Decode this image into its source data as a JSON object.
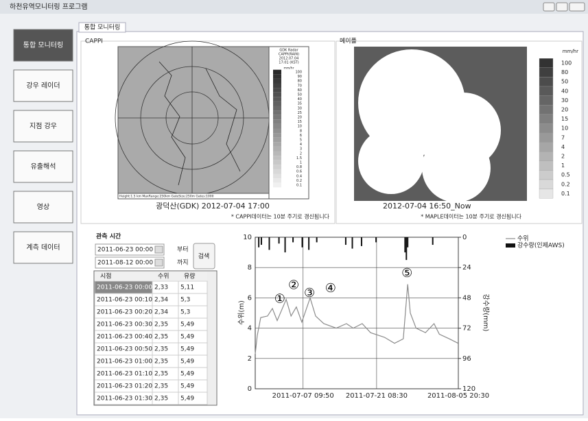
{
  "window": {
    "title": "하천유역모니터링 프로그램"
  },
  "sidebar": {
    "buttons": [
      "통합 모니터링",
      "강우 레이더",
      "지점 강우",
      "유출해석",
      "영상",
      "계측 데이터"
    ]
  },
  "tab": "통합 모니터링",
  "cappi": {
    "label": "CAPPI",
    "legend_header": [
      "GDK Radar",
      "CAPPI(RAIN)",
      "2012.07.04",
      "17:01 (KST)"
    ],
    "legend_unit": "mm/hr",
    "legend_values": [
      100,
      90,
      80,
      70,
      60,
      50,
      40,
      35,
      30,
      25,
      20,
      15,
      10,
      8,
      6,
      5,
      4,
      3,
      2,
      1.5,
      1,
      0.8,
      0.6,
      0.4,
      0.2,
      0.1
    ],
    "footer": "Height:1.5 km  MaxRange:250km  GateSize:250m  Gates:1000",
    "caption": "광덕산(GDK) 2012-07-04 17:00",
    "note": "* CAPPI데이터는 10분 주기로 갱신됩니다"
  },
  "maple": {
    "label": "메이플",
    "legend_unit": "mm/hr",
    "legend_values": [
      100,
      80,
      50,
      40,
      30,
      20,
      15,
      10,
      7,
      4,
      2,
      1,
      0.5,
      0.2,
      0.1
    ],
    "caption": "2012-07-04 16:50_Now",
    "note": "* MAPLE데이터는 10분 주기로 갱신됩니다"
  },
  "query": {
    "label": "관측 시간",
    "from": "2011-06-23 00:00",
    "from_suffix": "부터",
    "to": "2011-08-12 00:00",
    "to_suffix": "까지",
    "button": "검색"
  },
  "table": {
    "columns": [
      "시점",
      "수위",
      "유량"
    ],
    "rows": [
      [
        "2011-06-23 00:00",
        "2,33",
        "5,11"
      ],
      [
        "2011-06-23 00:10",
        "2,34",
        "5,3"
      ],
      [
        "2011-06-23 00:20",
        "2,34",
        "5,3"
      ],
      [
        "2011-06-23 00:30",
        "2,35",
        "5,49"
      ],
      [
        "2011-06-23 00:40",
        "2,35",
        "5,49"
      ],
      [
        "2011-06-23 00:50",
        "2,35",
        "5,49"
      ],
      [
        "2011-06-23 01:00",
        "2,35",
        "5,49"
      ],
      [
        "2011-06-23 01:10",
        "2,35",
        "5,49"
      ],
      [
        "2011-06-23 01:20",
        "2,35",
        "5,49"
      ],
      [
        "2011-06-23 01:30",
        "2,35",
        "5,49"
      ]
    ]
  },
  "chart_data": {
    "type": "line",
    "ylabel": "수위(m)",
    "y2label": "강수량(mm)",
    "xlim": [
      "2011-06-28 08:00",
      "2011-08-05 20:30"
    ],
    "xticks": [
      "2011-07-07 09:50",
      "2011-07-21 08:30",
      "2011-08-05 20:30"
    ],
    "ylim": [
      0,
      10
    ],
    "yticks": [
      0,
      2,
      4,
      6,
      8,
      10
    ],
    "y2lim": [
      120,
      0
    ],
    "y2ticks": [
      0,
      24,
      48,
      72,
      96,
      120
    ],
    "grid": true,
    "series": [
      {
        "name": "수위",
        "color": "#8a8a8a",
        "x": [
          "2011-06-28 08:00",
          "2011-06-28 17:00",
          "2011-06-29 09:00",
          "2011-06-30 16:00",
          "2011-07-01 14:00",
          "2011-07-02 12:00",
          "2011-07-04 05:00",
          "2011-07-05 03:00",
          "2011-07-06 03:00",
          "2011-07-07 04:00",
          "2011-07-08 18:00",
          "2011-07-09 19:00",
          "2011-07-11 08:00",
          "2011-07-13 17:00",
          "2011-07-15 15:00",
          "2011-07-16 22:00",
          "2011-07-18 15:00",
          "2011-07-20 05:00",
          "2011-07-22 20:00",
          "2011-07-24 18:00",
          "2011-07-26 10:00",
          "2011-07-27 06:00",
          "2011-07-27 18:00",
          "2011-07-28 20:00",
          "2011-07-30 15:00",
          "2011-08-01 06:00",
          "2011-08-02 06:00",
          "2011-08-04 03:00",
          "2011-08-05 20:00"
        ],
        "values": [
          2.3,
          3.5,
          4.7,
          4.8,
          5.3,
          4.5,
          5.9,
          4.8,
          5.4,
          4.4,
          6.0,
          4.8,
          4.3,
          4.0,
          4.3,
          4.0,
          4.3,
          3.7,
          3.4,
          3.0,
          3.3,
          6.9,
          5.0,
          4.0,
          3.7,
          4.3,
          3.6,
          3.3,
          3.0
        ]
      },
      {
        "name": "강수량(인제AWS)",
        "color": "#111111",
        "axis": "y2",
        "kind": "bar",
        "x": [
          "2011-06-29 00:00",
          "2011-06-29 12:00",
          "2011-07-01 00:00",
          "2011-07-02 20:00",
          "2011-07-04 00:00",
          "2011-07-05 12:00",
          "2011-07-07 06:00",
          "2011-07-08 12:00",
          "2011-07-10 00:00",
          "2011-07-15 12:00",
          "2011-07-16 18:00",
          "2011-07-18 12:00",
          "2011-07-21 06:00",
          "2011-07-26 18:00",
          "2011-07-27 00:00",
          "2011-07-27 06:00",
          "2011-08-01 00:00"
        ],
        "values": [
          8,
          6,
          10,
          5,
          12,
          4,
          8,
          10,
          4,
          6,
          9,
          7,
          4,
          12,
          18,
          8,
          6
        ]
      }
    ],
    "annotations": [
      {
        "text": "①",
        "x": "2011-07-03 00:00",
        "y": 5.9
      },
      {
        "text": "②",
        "x": "2011-07-05 15:00",
        "y": 6.8
      },
      {
        "text": "③",
        "x": "2011-07-08 15:00",
        "y": 6.3
      },
      {
        "text": "④",
        "x": "2011-07-12 15:00",
        "y": 6.6
      },
      {
        "text": "⑤",
        "x": "2011-07-27 03:00",
        "y": 7.6
      }
    ]
  }
}
